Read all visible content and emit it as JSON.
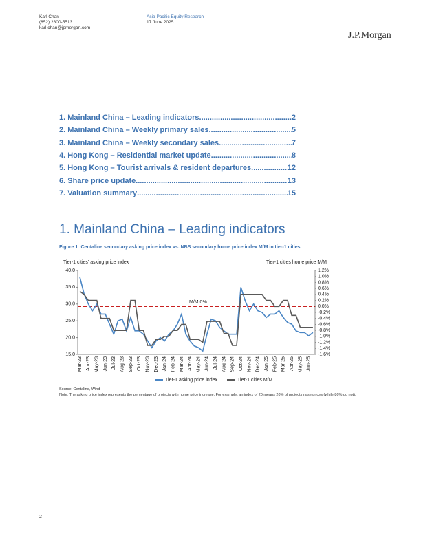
{
  "header": {
    "author": "Karl Chan",
    "phone": "(852) 2800-5513",
    "email": "karl.chan@jpmorgan.com",
    "research": "Asia Pacific Equity Research",
    "date": "17 June 2025",
    "logo": "J.P.Morgan"
  },
  "toc": [
    {
      "text": "1. Mainland China – Leading indicators",
      "page": 2
    },
    {
      "text": "2. Mainland China – Weekly primary sales",
      "page": 5
    },
    {
      "text": "3. Mainland China – Weekly secondary sales",
      "page": 7
    },
    {
      "text": "4. Hong Kong – Residential market update",
      "page": 8
    },
    {
      "text": "5. Hong Kong – Tourist arrivals & resident departures",
      "page": 12
    },
    {
      "text": "6. Share price update",
      "page": 13
    },
    {
      "text": "7. Valuation summary",
      "page": 15
    }
  ],
  "section": {
    "title": "1. Mainland China – Leading indicators"
  },
  "figure": {
    "title": "Figure 1: Centaline secondary asking price index vs. NBS secondary home price index M/M in tier-1 cities"
  },
  "chart_data": {
    "type": "line",
    "y_label": "Tier-1 cities' asking price index",
    "y2_label": "Tier-1 cities home price M/M",
    "categories": [
      "Mar-23",
      null,
      "Apr-23",
      null,
      "May-23",
      null,
      "Jun-23",
      null,
      "Jul-23",
      null,
      "Aug-23",
      null,
      "Sep-23",
      null,
      "Oct-23",
      null,
      "Nov-23",
      null,
      "Dec-23",
      null,
      "Jan-24",
      null,
      "Feb-24",
      null,
      "Mar-24",
      null,
      "Apr-24",
      null,
      "May-24",
      null,
      "Jun-24",
      null,
      "Jul-24",
      null,
      "Aug-24",
      null,
      "Sep-24",
      null,
      "Oct-24",
      null,
      "Nov-24",
      null,
      "Dec-24",
      null,
      "Jan-25",
      null,
      "Feb-25",
      null,
      "Mar-25",
      null,
      "Apr-25",
      null,
      "May-25",
      null,
      "Jun-25",
      null
    ],
    "series": [
      {
        "name": "Tier-1 asking price index",
        "color": "#4a86c5",
        "axis": "y",
        "values": [
          38,
          33,
          30,
          28,
          30,
          27,
          27,
          24,
          21,
          25,
          25.5,
          22,
          26,
          22,
          22,
          21,
          19,
          17,
          19,
          20,
          19,
          21,
          22,
          24,
          27,
          21,
          19,
          17.5,
          17,
          16,
          21,
          25.5,
          25,
          23,
          22,
          21,
          21,
          21,
          35,
          31,
          28,
          30,
          28,
          27.5,
          26,
          27,
          27,
          28,
          26,
          24.5,
          24,
          22,
          21.5,
          21.5,
          20.5,
          21.5
        ]
      },
      {
        "name": "Tier-1 cities M/M",
        "color": "#595959",
        "axis": "y2",
        "values": [
          0.5,
          0.4,
          0.2,
          0.2,
          0.2,
          -0.4,
          -0.4,
          -0.4,
          -0.8,
          -0.8,
          -0.8,
          -0.8,
          0.2,
          0.2,
          -0.8,
          -0.8,
          -1.3,
          -1.3,
          -1.1,
          -1.1,
          -1.0,
          -1.0,
          -0.8,
          -0.8,
          -0.6,
          -0.6,
          -1.1,
          -1.1,
          -1.1,
          -1.2,
          -0.5,
          -0.5,
          -0.5,
          -0.5,
          -0.9,
          -0.9,
          -1.3,
          -1.3,
          0.4,
          0.4,
          0.4,
          0.4,
          0.4,
          0.4,
          0.2,
          0.2,
          0.0,
          0.0,
          0.2,
          0.2,
          -0.3,
          -0.3,
          -0.7,
          -0.7,
          -0.7,
          -0.7
        ]
      }
    ],
    "ylim": [
      15,
      40
    ],
    "yticks": [
      {
        "value": 15,
        "label": "15.0"
      },
      {
        "value": 20,
        "label": "20.0"
      },
      {
        "value": 25,
        "label": "25.0"
      },
      {
        "value": 30,
        "label": "30.0"
      },
      {
        "value": 35,
        "label": "35.0"
      },
      {
        "value": 40,
        "label": "40.0"
      }
    ],
    "y2lim": [
      -1.6,
      1.2
    ],
    "y2ticks": [
      {
        "value": -1.6,
        "label": "-1.6%"
      },
      {
        "value": -1.4,
        "label": "-1.4%"
      },
      {
        "value": -1.2,
        "label": "-1.2%"
      },
      {
        "value": -1.0,
        "label": "-1.0%"
      },
      {
        "value": -0.8,
        "label": "-0.8%"
      },
      {
        "value": -0.6,
        "label": "-0.6%"
      },
      {
        "value": -0.4,
        "label": "-0.4%"
      },
      {
        "value": -0.2,
        "label": "-0.2%"
      },
      {
        "value": 0,
        "label": "0.0%"
      },
      {
        "value": 0.2,
        "label": "0.2%"
      },
      {
        "value": 0.4,
        "label": "0.4%"
      },
      {
        "value": 0.6,
        "label": "0.6%"
      },
      {
        "value": 0.8,
        "label": "0.8%"
      },
      {
        "value": 1.0,
        "label": "1.0%"
      },
      {
        "value": 1.2,
        "label": "1.2%"
      }
    ],
    "reference_line": {
      "value": 0,
      "axis": "y2",
      "label": "M/M 0%",
      "color": "#c00000"
    },
    "legend": "bottom"
  },
  "source": "Source: Centaline, Wind",
  "note": "Note: The asking price index represents the percentage of projects with home price increase. For example, an index of 20 means 20% of projects raise prices (while 80% do not).",
  "page_number": 2
}
